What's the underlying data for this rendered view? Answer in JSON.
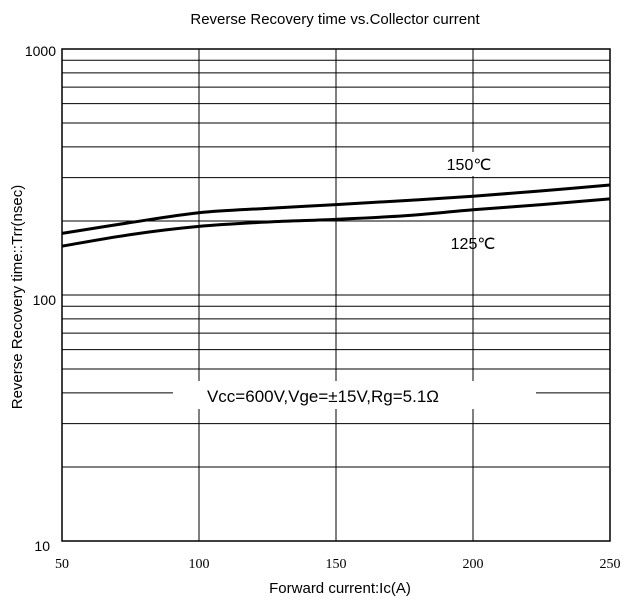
{
  "chart_data": {
    "type": "line",
    "title": "Reverse Recovery time vs.Collector current",
    "xlabel": "Forward current:Ic(A)",
    "ylabel": "Reverse Recovery time::Trr(nsec)",
    "xlim": [
      50,
      250
    ],
    "ylim": [
      10,
      1000
    ],
    "yscale": "log",
    "grid": true,
    "x_ticks": [
      "50",
      "100",
      "150",
      "200",
      "250"
    ],
    "y_ticks": [
      "10",
      "100",
      "1000"
    ],
    "condition_note": "Vcc=600V,Vge=±15V,Rg=5.1Ω",
    "series": [
      {
        "name": "150℃",
        "x": [
          50,
          75,
          100,
          125,
          150,
          175,
          200,
          225,
          250
        ],
        "y": [
          178,
          197,
          216,
          225,
          233,
          242,
          252,
          265,
          280
        ]
      },
      {
        "name": "125℃",
        "x": [
          50,
          75,
          100,
          125,
          150,
          175,
          200,
          225,
          250
        ],
        "y": [
          158,
          176,
          190,
          198,
          203,
          210,
          222,
          233,
          246
        ]
      }
    ],
    "line_color": "#000000"
  }
}
